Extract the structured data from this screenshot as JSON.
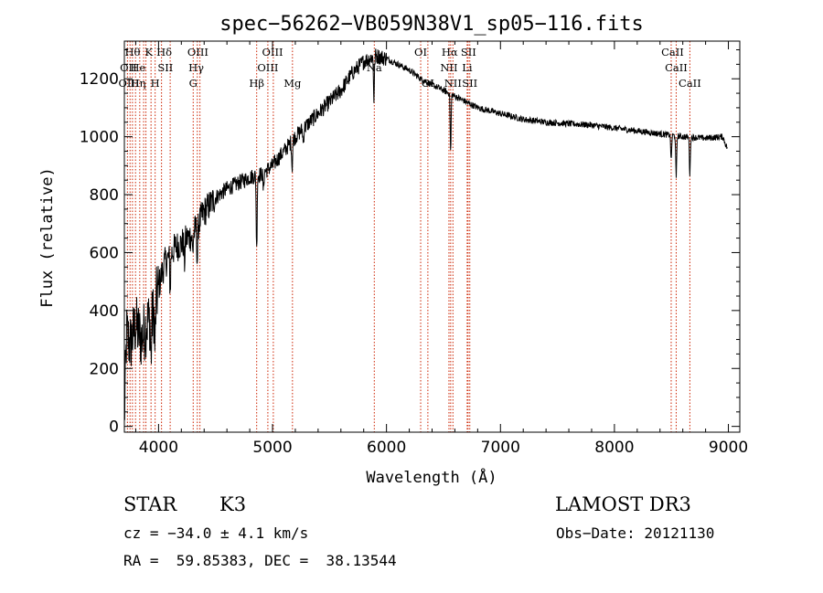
{
  "chart_data": {
    "type": "line",
    "title": "spec−56262−VB059N38V1_sp05−116.fits",
    "xlabel": "Wavelength (Å)",
    "ylabel": "Flux (relative)",
    "xlim": [
      3700,
      9100
    ],
    "ylim": [
      -20,
      1330
    ],
    "xticks": [
      4000,
      5000,
      6000,
      7000,
      8000,
      9000
    ],
    "yticks": [
      0,
      200,
      400,
      600,
      800,
      1000,
      1200
    ],
    "anchors": [
      [
        3700,
        20
      ],
      [
        3720,
        320
      ],
      [
        3750,
        280
      ],
      [
        3800,
        350
      ],
      [
        3850,
        300
      ],
      [
        3900,
        360
      ],
      [
        3950,
        380
      ],
      [
        4000,
        480
      ],
      [
        4050,
        560
      ],
      [
        4100,
        590
      ],
      [
        4150,
        620
      ],
      [
        4200,
        630
      ],
      [
        4250,
        650
      ],
      [
        4300,
        660
      ],
      [
        4350,
        700
      ],
      [
        4400,
        740
      ],
      [
        4500,
        790
      ],
      [
        4600,
        820
      ],
      [
        4700,
        840
      ],
      [
        4800,
        860
      ],
      [
        4900,
        870
      ],
      [
        5000,
        900
      ],
      [
        5100,
        950
      ],
      [
        5200,
        1000
      ],
      [
        5300,
        1040
      ],
      [
        5400,
        1080
      ],
      [
        5500,
        1120
      ],
      [
        5600,
        1160
      ],
      [
        5700,
        1220
      ],
      [
        5800,
        1260
      ],
      [
        5900,
        1280
      ],
      [
        6000,
        1270
      ],
      [
        6100,
        1250
      ],
      [
        6200,
        1230
      ],
      [
        6300,
        1200
      ],
      [
        6400,
        1180
      ],
      [
        6500,
        1160
      ],
      [
        6600,
        1140
      ],
      [
        6700,
        1120
      ],
      [
        6800,
        1100
      ],
      [
        6900,
        1090
      ],
      [
        7000,
        1080
      ],
      [
        7200,
        1060
      ],
      [
        7400,
        1050
      ],
      [
        7600,
        1045
      ],
      [
        7800,
        1040
      ],
      [
        8000,
        1030
      ],
      [
        8200,
        1020
      ],
      [
        8400,
        1010
      ],
      [
        8600,
        1000
      ],
      [
        8800,
        995
      ],
      [
        8950,
        1000
      ],
      [
        8990,
        960
      ]
    ],
    "absorption": [
      [
        3934,
        150
      ],
      [
        3969,
        150
      ],
      [
        4102,
        120
      ],
      [
        4227,
        80
      ],
      [
        4300,
        60
      ],
      [
        4340,
        120
      ],
      [
        4861,
        260
      ],
      [
        4920,
        60
      ],
      [
        5172,
        90
      ],
      [
        5270,
        50
      ],
      [
        5890,
        150
      ],
      [
        6563,
        200
      ],
      [
        8498,
        90
      ],
      [
        8542,
        150
      ],
      [
        8662,
        130
      ]
    ],
    "line_marker_wavelengths": [
      3727,
      3750,
      3771,
      3798,
      3835,
      3869,
      3889,
      3934,
      3970,
      4026,
      4102,
      4304,
      4340,
      4363,
      4861,
      4959,
      5007,
      5175,
      5893,
      6300,
      6363,
      6548,
      6563,
      6583,
      6708,
      6716,
      6731,
      8498,
      8542,
      8662
    ],
    "line_labels": [
      {
        "text": "Hθ",
        "wave": 3772,
        "row": 0
      },
      {
        "text": "K",
        "wave": 3915,
        "row": 0
      },
      {
        "text": "Hδ",
        "wave": 4050,
        "row": 0
      },
      {
        "text": "OIII",
        "wave": 4345,
        "row": 0
      },
      {
        "text": "OIII",
        "wave": 5000,
        "row": 0
      },
      {
        "text": "OI",
        "wave": 6300,
        "row": 0
      },
      {
        "text": "Hα",
        "wave": 6555,
        "row": 0
      },
      {
        "text": "SII",
        "wave": 6720,
        "row": 0
      },
      {
        "text": "CaII",
        "wave": 8510,
        "row": 0
      },
      {
        "text": "OII",
        "wave": 3735,
        "row": 1
      },
      {
        "text": "He",
        "wave": 3820,
        "row": 1
      },
      {
        "text": "SII",
        "wave": 4060,
        "row": 1
      },
      {
        "text": "Hγ",
        "wave": 4330,
        "row": 1
      },
      {
        "text": "OIII",
        "wave": 4959,
        "row": 1
      },
      {
        "text": "Na",
        "wave": 5893,
        "row": 1
      },
      {
        "text": "NII",
        "wave": 6548,
        "row": 1
      },
      {
        "text": "Li",
        "wave": 6708,
        "row": 1
      },
      {
        "text": "CaII",
        "wave": 8542,
        "row": 1
      },
      {
        "text": "OIII",
        "wave": 3740,
        "row": 2
      },
      {
        "text": "Hη",
        "wave": 3820,
        "row": 2
      },
      {
        "text": "H",
        "wave": 3970,
        "row": 2
      },
      {
        "text": "G",
        "wave": 4304,
        "row": 2
      },
      {
        "text": "Hβ",
        "wave": 4861,
        "row": 2
      },
      {
        "text": "Mg",
        "wave": 5175,
        "row": 2
      },
      {
        "text": "OI",
        "wave": 6363,
        "row": 2
      },
      {
        "text": "NII",
        "wave": 6583,
        "row": 2
      },
      {
        "text": "SII",
        "wave": 6731,
        "row": 2
      },
      {
        "text": "CaII",
        "wave": 8662,
        "row": 2
      }
    ]
  },
  "info": {
    "object_class": "STAR",
    "subclass": "K3",
    "survey": "LAMOST DR3",
    "cz": "cz = −34.0 ± 4.1 km/s",
    "obs_date": "Obs−Date: 20121130",
    "radec": "RA =  59.85383, DEC =  38.13544"
  }
}
